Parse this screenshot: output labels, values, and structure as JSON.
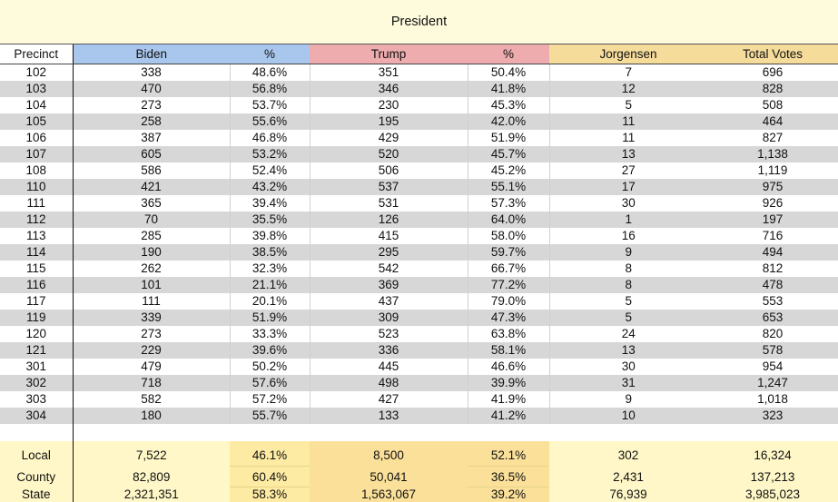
{
  "title": "President",
  "headers": {
    "precinct": "Precinct",
    "biden": "Biden",
    "biden_pct": "%",
    "trump": "Trump",
    "trump_pct": "%",
    "jorgensen": "Jorgensen",
    "total": "Total Votes"
  },
  "rows": [
    {
      "precinct": "102",
      "biden": "338",
      "biden_pct": "48.6%",
      "trump": "351",
      "trump_pct": "50.4%",
      "jorgensen": "7",
      "total": "696"
    },
    {
      "precinct": "103",
      "biden": "470",
      "biden_pct": "56.8%",
      "trump": "346",
      "trump_pct": "41.8%",
      "jorgensen": "12",
      "total": "828"
    },
    {
      "precinct": "104",
      "biden": "273",
      "biden_pct": "53.7%",
      "trump": "230",
      "trump_pct": "45.3%",
      "jorgensen": "5",
      "total": "508"
    },
    {
      "precinct": "105",
      "biden": "258",
      "biden_pct": "55.6%",
      "trump": "195",
      "trump_pct": "42.0%",
      "jorgensen": "11",
      "total": "464"
    },
    {
      "precinct": "106",
      "biden": "387",
      "biden_pct": "46.8%",
      "trump": "429",
      "trump_pct": "51.9%",
      "jorgensen": "11",
      "total": "827"
    },
    {
      "precinct": "107",
      "biden": "605",
      "biden_pct": "53.2%",
      "trump": "520",
      "trump_pct": "45.7%",
      "jorgensen": "13",
      "total": "1,138"
    },
    {
      "precinct": "108",
      "biden": "586",
      "biden_pct": "52.4%",
      "trump": "506",
      "trump_pct": "45.2%",
      "jorgensen": "27",
      "total": "1,119"
    },
    {
      "precinct": "110",
      "biden": "421",
      "biden_pct": "43.2%",
      "trump": "537",
      "trump_pct": "55.1%",
      "jorgensen": "17",
      "total": "975"
    },
    {
      "precinct": "111",
      "biden": "365",
      "biden_pct": "39.4%",
      "trump": "531",
      "trump_pct": "57.3%",
      "jorgensen": "30",
      "total": "926"
    },
    {
      "precinct": "112",
      "biden": "70",
      "biden_pct": "35.5%",
      "trump": "126",
      "trump_pct": "64.0%",
      "jorgensen": "1",
      "total": "197"
    },
    {
      "precinct": "113",
      "biden": "285",
      "biden_pct": "39.8%",
      "trump": "415",
      "trump_pct": "58.0%",
      "jorgensen": "16",
      "total": "716"
    },
    {
      "precinct": "114",
      "biden": "190",
      "biden_pct": "38.5%",
      "trump": "295",
      "trump_pct": "59.7%",
      "jorgensen": "9",
      "total": "494"
    },
    {
      "precinct": "115",
      "biden": "262",
      "biden_pct": "32.3%",
      "trump": "542",
      "trump_pct": "66.7%",
      "jorgensen": "8",
      "total": "812"
    },
    {
      "precinct": "116",
      "biden": "101",
      "biden_pct": "21.1%",
      "trump": "369",
      "trump_pct": "77.2%",
      "jorgensen": "8",
      "total": "478"
    },
    {
      "precinct": "117",
      "biden": "111",
      "biden_pct": "20.1%",
      "trump": "437",
      "trump_pct": "79.0%",
      "jorgensen": "5",
      "total": "553"
    },
    {
      "precinct": "119",
      "biden": "339",
      "biden_pct": "51.9%",
      "trump": "309",
      "trump_pct": "47.3%",
      "jorgensen": "5",
      "total": "653"
    },
    {
      "precinct": "120",
      "biden": "273",
      "biden_pct": "33.3%",
      "trump": "523",
      "trump_pct": "63.8%",
      "jorgensen": "24",
      "total": "820"
    },
    {
      "precinct": "121",
      "biden": "229",
      "biden_pct": "39.6%",
      "trump": "336",
      "trump_pct": "58.1%",
      "jorgensen": "13",
      "total": "578"
    },
    {
      "precinct": "301",
      "biden": "479",
      "biden_pct": "50.2%",
      "trump": "445",
      "trump_pct": "46.6%",
      "jorgensen": "30",
      "total": "954"
    },
    {
      "precinct": "302",
      "biden": "718",
      "biden_pct": "57.6%",
      "trump": "498",
      "trump_pct": "39.9%",
      "jorgensen": "31",
      "total": "1,247"
    },
    {
      "precinct": "303",
      "biden": "582",
      "biden_pct": "57.2%",
      "trump": "427",
      "trump_pct": "41.9%",
      "jorgensen": "9",
      "total": "1,018"
    },
    {
      "precinct": "304",
      "biden": "180",
      "biden_pct": "55.7%",
      "trump": "133",
      "trump_pct": "41.2%",
      "jorgensen": "10",
      "total": "323"
    }
  ],
  "summary": [
    {
      "label": "Local",
      "biden": "7,522",
      "biden_pct": "46.1%",
      "trump": "8,500",
      "trump_pct": "52.1%",
      "jorgensen": "302",
      "total": "16,324"
    },
    {
      "label": "County",
      "biden": "82,809",
      "biden_pct": "60.4%",
      "trump": "50,041",
      "trump_pct": "36.5%",
      "jorgensen": "2,431",
      "total": "137,213"
    },
    {
      "label": "State",
      "biden": "2,321,351",
      "biden_pct": "58.3%",
      "trump": "1,563,067",
      "trump_pct": "39.2%",
      "jorgensen": "76,939",
      "total": "3,985,023"
    }
  ],
  "colors": {
    "title_bg": "#fdfbdb",
    "biden_header": "#a9c6ec",
    "trump_header": "#eeacaf",
    "jorgensen_header": "#f6dc9b",
    "row_alt": "#d7d7d7",
    "summary_bg": "#fff7c7"
  }
}
